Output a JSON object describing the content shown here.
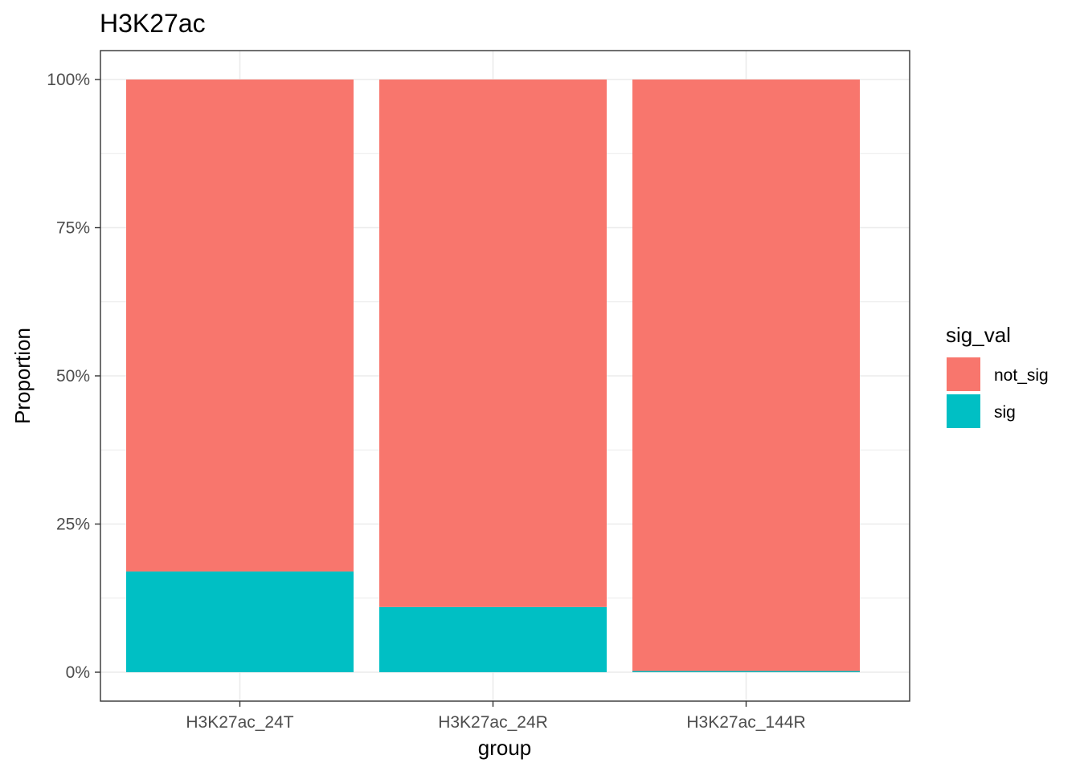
{
  "chart_data": {
    "type": "bar",
    "stacked": true,
    "title": "H3K27ac",
    "xlabel": "group",
    "ylabel": "Proportion",
    "categories": [
      "H3K27ac_24T",
      "H3K27ac_24R",
      "H3K27ac_144R"
    ],
    "series": [
      {
        "name": "not_sig",
        "color": "#F8766D",
        "values": [
          0.83,
          0.89,
          0.998
        ]
      },
      {
        "name": "sig",
        "color": "#00BFC4",
        "values": [
          0.17,
          0.11,
          0.002
        ]
      }
    ],
    "ylim": [
      0,
      1
    ],
    "yticks": [
      0,
      0.25,
      0.5,
      0.75,
      1
    ],
    "ytick_labels": [
      "0%",
      "25%",
      "50%",
      "75%",
      "100%"
    ],
    "grid": true,
    "legend": {
      "title": "sig_val",
      "position": "right"
    }
  }
}
